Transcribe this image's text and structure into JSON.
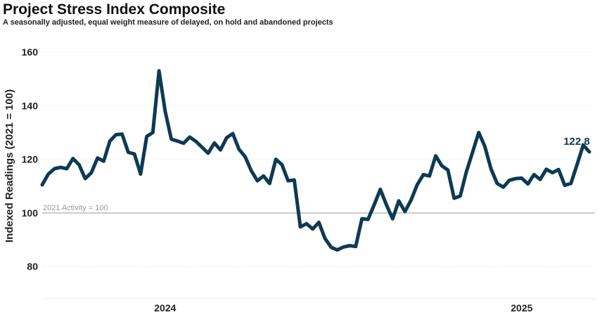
{
  "chart_data": {
    "type": "line",
    "title": "Project Stress Index Composite",
    "subtitle": "A seasonally adjusted, equal weight measure of delayed, on hold and abandoned projects",
    "xlabel": "",
    "ylabel": "Indexed Readings (2021 = 100)",
    "ylim": [
      68,
      165
    ],
    "yticks": [
      80,
      100,
      120,
      140,
      160
    ],
    "ytick_labels": [
      "80",
      "100",
      "120",
      "140",
      "160"
    ],
    "xtick_labels": [
      "2024",
      "2025"
    ],
    "xtick_index": [
      20,
      78
    ],
    "reference_line": {
      "value": 100,
      "label": "2021 Activity = 100"
    },
    "end_label": "122.8",
    "line_color": "#0d3a53",
    "series": [
      {
        "name": "Project Stress Index Composite",
        "values": [
          110.5,
          114.5,
          116.5,
          117.0,
          116.5,
          120.3,
          118.0,
          112.8,
          115.0,
          120.5,
          119.3,
          126.8,
          129.2,
          129.4,
          122.6,
          122.0,
          114.5,
          128.5,
          130.0,
          153.0,
          138.0,
          127.5,
          126.8,
          126.0,
          128.3,
          126.7,
          124.5,
          122.3,
          126.1,
          123.5,
          128.0,
          129.6,
          123.8,
          121.0,
          115.8,
          112.0,
          113.8,
          111.0,
          120.0,
          118.0,
          112.0,
          112.3,
          94.8,
          96.0,
          94.0,
          96.5,
          90.5,
          87.2,
          86.2,
          87.3,
          87.8,
          87.5,
          97.8,
          97.6,
          103.0,
          108.8,
          103.0,
          97.8,
          104.5,
          100.5,
          104.8,
          110.5,
          114.3,
          113.8,
          121.3,
          117.6,
          116.0,
          105.5,
          106.3,
          115.4,
          122.6,
          130.0,
          124.8,
          116.5,
          111.0,
          109.6,
          112.2,
          112.8,
          113.0,
          110.8,
          114.3,
          112.5,
          116.3,
          115.0,
          116.2,
          110.3,
          111.0,
          118.0,
          125.3,
          122.8
        ]
      }
    ]
  }
}
